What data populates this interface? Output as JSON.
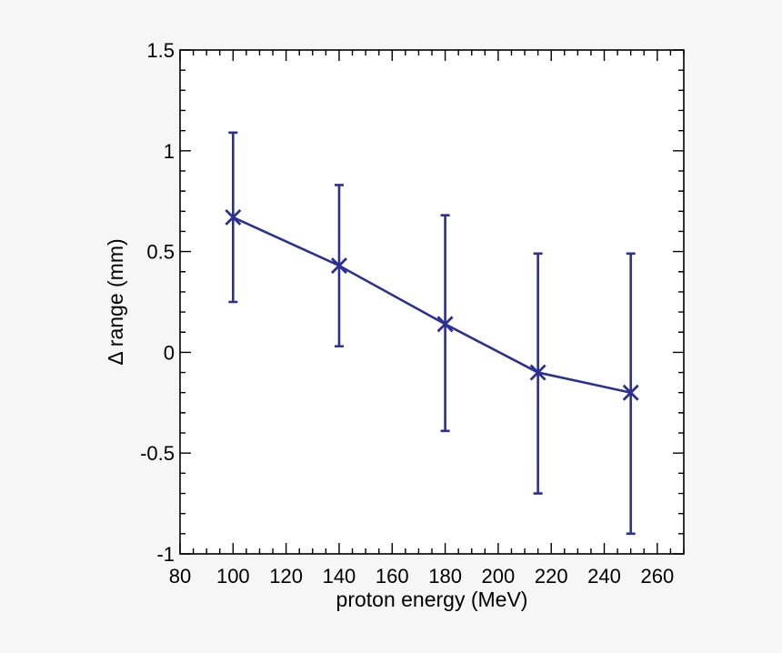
{
  "chart_data": {
    "type": "line",
    "title": "",
    "xlabel": "proton energy (MeV)",
    "ylabel": "Δ range (mm)",
    "xlim": [
      80,
      270
    ],
    "ylim": [
      -1,
      1.5
    ],
    "x_ticks": [
      80,
      100,
      120,
      140,
      160,
      180,
      200,
      220,
      240,
      260
    ],
    "x_tick_labels": [
      "80",
      "100",
      "120",
      "140",
      "160",
      "180",
      "200",
      "220",
      "240",
      "260"
    ],
    "y_ticks": [
      -1,
      -0.5,
      0,
      0.5,
      1,
      1.5
    ],
    "y_tick_labels": [
      "-1",
      "-0.5",
      "0",
      "0.5",
      "1",
      "1.5"
    ],
    "x_minor_step": 5,
    "y_minor_step": 0.1,
    "grid": false,
    "line_color": "#2b3092",
    "marker": "x",
    "series": [
      {
        "x": [
          100,
          140,
          180,
          215,
          250
        ],
        "y": [
          0.67,
          0.43,
          0.14,
          -0.1,
          -0.2
        ],
        "y_err_low": [
          0.25,
          0.03,
          -0.39,
          -0.7,
          -0.9
        ],
        "y_err_high": [
          1.09,
          0.83,
          0.68,
          0.49,
          0.49
        ]
      }
    ]
  }
}
